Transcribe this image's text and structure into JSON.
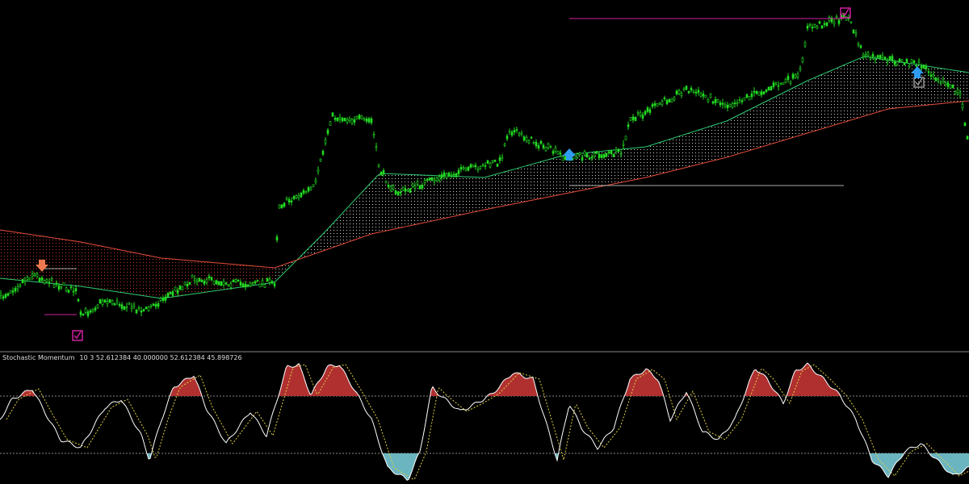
{
  "indicator_panel": {
    "name": "Stochastic Momentum",
    "params": "10 3 52.612384 40.000000 52.612384 45.898726"
  }
}
